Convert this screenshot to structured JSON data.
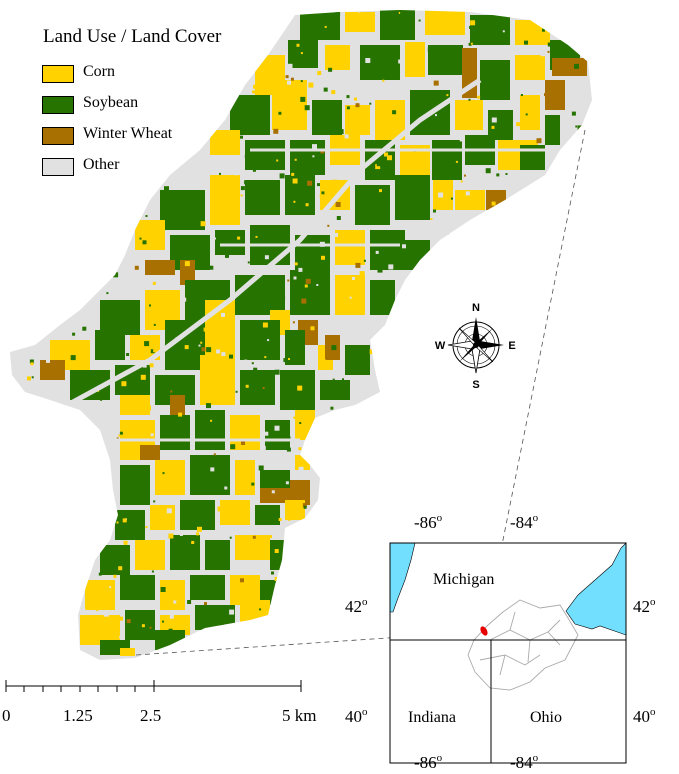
{
  "legend": {
    "title": "Land Use / Land Cover",
    "items": [
      {
        "label": "Corn",
        "color": "#FFD200"
      },
      {
        "label": "Soybean",
        "color": "#267300"
      },
      {
        "label": "Winter Wheat",
        "color": "#A87000"
      },
      {
        "label": "Other",
        "color": "#E1E1E1"
      }
    ]
  },
  "compass": {
    "n": "N",
    "s": "S",
    "e": "E",
    "w": "W"
  },
  "scale_bar": {
    "labels": [
      "0",
      "1.25",
      "2.5",
      "5 km"
    ]
  },
  "inset": {
    "top_lon_labels": [
      "-86",
      "-84"
    ],
    "bottom_lon_labels": [
      "-86",
      "-84"
    ],
    "left_lat_labels": [
      "42",
      "40"
    ],
    "right_lat_labels": [
      "42",
      "40"
    ],
    "degree_mark": "o",
    "states": [
      "Michigan",
      "Indiana",
      "Ohio"
    ],
    "water_color": "#73DFFF",
    "study_area_color": "#E60000"
  }
}
